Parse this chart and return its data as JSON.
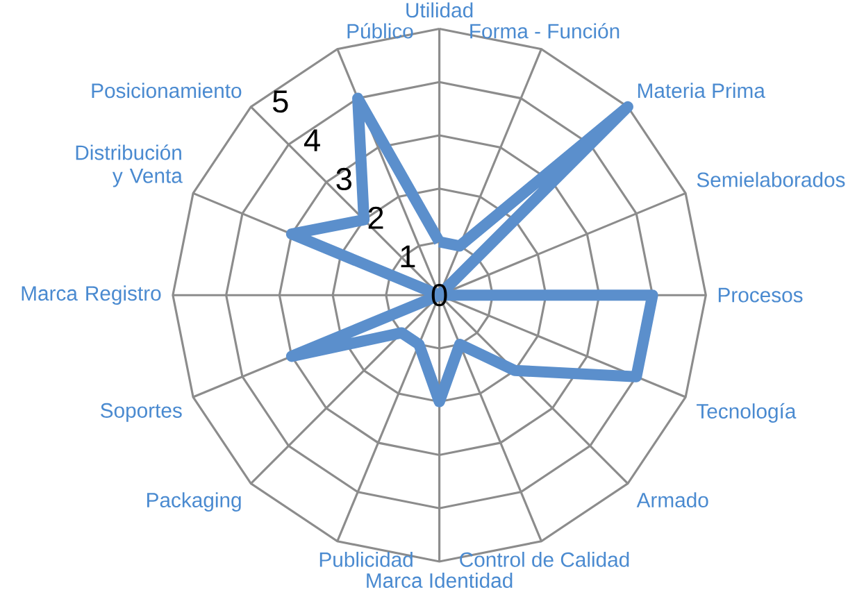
{
  "chart_data": {
    "type": "radar",
    "categories": [
      "Utilidad",
      "Forma - Función",
      "Materia Prima",
      "Semielaborados",
      "Procesos",
      "Tecnología",
      "Armado",
      "Control de Calidad",
      "Marca Identidad",
      "Publicidad",
      "Packaging",
      "Soportes",
      "Marca Registro",
      "Distribución y Venta",
      "Posicionamiento",
      "Público"
    ],
    "ylim": [
      0,
      5
    ],
    "yticks": [
      0,
      1,
      2,
      3,
      4,
      5
    ],
    "grid": true,
    "series": [
      {
        "color": "#5b8fcc",
        "values": [
          1,
          1,
          5,
          0,
          4,
          4,
          2,
          1,
          2,
          1,
          1,
          3,
          0,
          3,
          2,
          4
        ]
      }
    ]
  }
}
